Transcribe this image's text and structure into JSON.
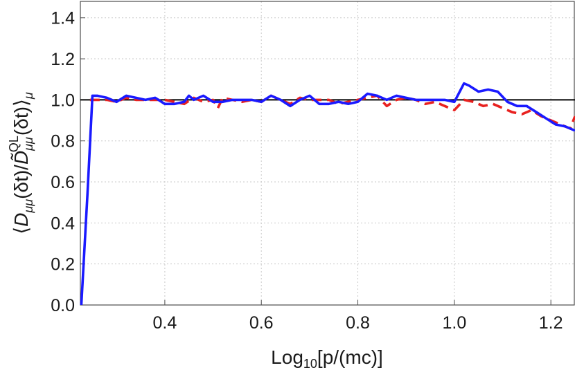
{
  "chart_data": {
    "type": "line",
    "title": "",
    "xlabel": "Log₁₀[p/(mc)]",
    "ylabel": "⟨D_μμ(δt)/D̃_μμ^QL(δt)⟩_μ",
    "xlim": [
      0.225,
      1.25
    ],
    "ylim": [
      0.0,
      1.48
    ],
    "grid": true,
    "legend": "none",
    "xticks": [
      0.4,
      0.6,
      0.8,
      1.0,
      1.2
    ],
    "xtick_labels": [
      "0.4",
      "0.6",
      "0.8",
      "1.0",
      "1.2"
    ],
    "yticks": [
      0.0,
      0.2,
      0.4,
      0.6,
      0.8,
      1.0,
      1.2,
      1.4
    ],
    "ytick_labels": [
      "0.0",
      "0.2",
      "0.4",
      "0.6",
      "0.8",
      "1.0",
      "1.2",
      "1.4"
    ],
    "reference_line": {
      "y": 1.0,
      "color": "#000000"
    },
    "series": [
      {
        "color": "#e8211f",
        "style": "dashed",
        "x": [
          0.245,
          0.25,
          0.26,
          0.28,
          0.3,
          0.32,
          0.34,
          0.36,
          0.38,
          0.4,
          0.42,
          0.44,
          0.46,
          0.48,
          0.5,
          0.51,
          0.52,
          0.54,
          0.56,
          0.58,
          0.6,
          0.62,
          0.64,
          0.66,
          0.68,
          0.7,
          0.72,
          0.74,
          0.76,
          0.78,
          0.8,
          0.82,
          0.84,
          0.86,
          0.88,
          0.9,
          0.92,
          0.94,
          0.96,
          0.98,
          1.0,
          1.02,
          1.04,
          1.06,
          1.08,
          1.1,
          1.12,
          1.14,
          1.16,
          1.18,
          1.2,
          1.22,
          1.24,
          1.25
        ],
        "values": [
          1.0,
          1.0,
          1.0,
          1.0,
          0.99,
          1.01,
          1.0,
          1.0,
          1.0,
          1.0,
          0.99,
          0.98,
          1.01,
          0.99,
          1.0,
          0.96,
          1.01,
          1.0,
          0.99,
          1.0,
          0.99,
          1.02,
          1.0,
          0.98,
          1.01,
          1.0,
          1.0,
          1.0,
          0.98,
          0.99,
          1.0,
          1.01,
          1.02,
          0.97,
          1.0,
          1.01,
          1.0,
          0.98,
          0.99,
          0.97,
          0.95,
          1.0,
          0.99,
          0.97,
          0.98,
          0.96,
          0.94,
          0.93,
          0.95,
          0.92,
          0.9,
          0.88,
          0.86,
          0.92
        ]
      },
      {
        "color": "#1a1aff",
        "style": "solid",
        "x": [
          0.227,
          0.24,
          0.25,
          0.26,
          0.28,
          0.3,
          0.32,
          0.34,
          0.36,
          0.38,
          0.4,
          0.42,
          0.44,
          0.45,
          0.46,
          0.48,
          0.5,
          0.52,
          0.54,
          0.56,
          0.58,
          0.6,
          0.62,
          0.64,
          0.66,
          0.68,
          0.7,
          0.72,
          0.74,
          0.76,
          0.78,
          0.8,
          0.82,
          0.84,
          0.86,
          0.88,
          0.9,
          0.92,
          0.94,
          0.96,
          0.98,
          1.0,
          1.02,
          1.03,
          1.05,
          1.07,
          1.09,
          1.11,
          1.13,
          1.15,
          1.17,
          1.19,
          1.21,
          1.23,
          1.25
        ],
        "values": [
          0.0,
          0.55,
          1.02,
          1.02,
          1.01,
          0.99,
          1.02,
          1.01,
          1.0,
          1.01,
          0.98,
          0.98,
          0.99,
          1.02,
          1.0,
          1.02,
          0.99,
          0.99,
          1.0,
          1.0,
          1.0,
          0.99,
          1.02,
          1.0,
          0.97,
          1.0,
          1.02,
          0.98,
          0.98,
          0.99,
          0.98,
          0.99,
          1.03,
          1.02,
          1.0,
          1.02,
          1.01,
          1.0,
          1.0,
          1.0,
          1.0,
          0.99,
          1.08,
          1.07,
          1.04,
          1.05,
          1.04,
          0.99,
          0.97,
          0.97,
          0.94,
          0.91,
          0.88,
          0.87,
          0.85
        ]
      }
    ]
  }
}
